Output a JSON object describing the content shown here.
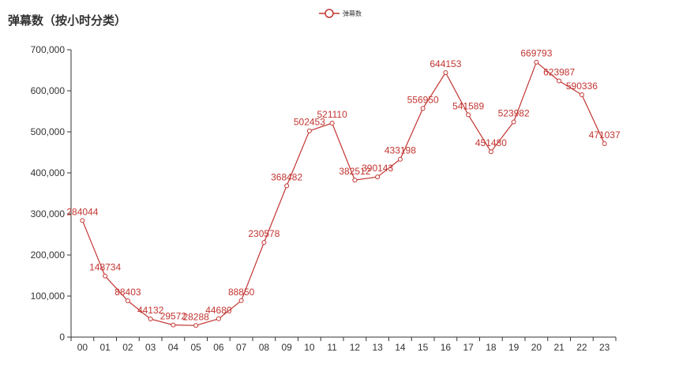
{
  "chart_data": {
    "type": "line",
    "title": "弹幕数（按小时分类）",
    "legend": {
      "position": "top-center",
      "entries": [
        "弹幕数"
      ]
    },
    "categories": [
      "00",
      "01",
      "02",
      "03",
      "04",
      "05",
      "06",
      "07",
      "08",
      "09",
      "10",
      "11",
      "12",
      "13",
      "14",
      "15",
      "16",
      "17",
      "18",
      "19",
      "20",
      "21",
      "22",
      "23"
    ],
    "series": [
      {
        "name": "弹幕数",
        "values": [
          284044,
          148734,
          88403,
          44132,
          29572,
          28288,
          44680,
          88850,
          230578,
          368482,
          502453,
          521110,
          382512,
          390143,
          433198,
          556950,
          644153,
          541589,
          451480,
          523982,
          669793,
          623987,
          590336,
          471037
        ]
      }
    ],
    "y_ticks": [
      "0",
      "100,000",
      "200,000",
      "300,000",
      "400,000",
      "500,000",
      "600,000",
      "700,000"
    ],
    "ylim": [
      0,
      700000
    ],
    "grid": false,
    "color": "#c23531"
  }
}
